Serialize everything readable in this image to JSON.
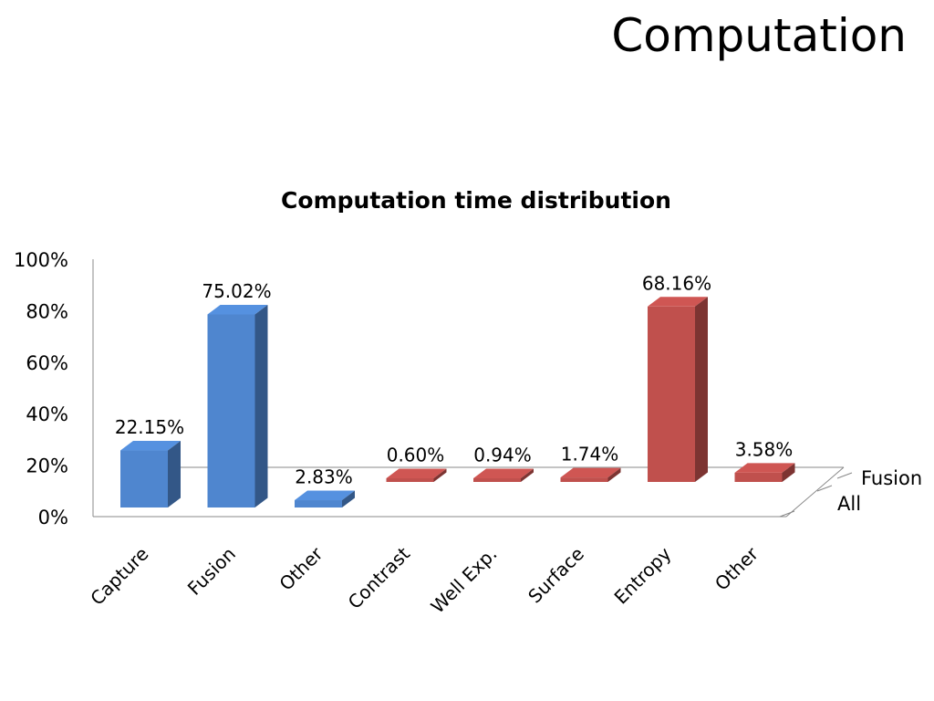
{
  "slide": {
    "title": "Computation"
  },
  "chart_data": {
    "type": "bar",
    "title": "Computation time distribution",
    "xlabel": "",
    "ylabel": "",
    "ylim": [
      0,
      100
    ],
    "yticks": [
      "0%",
      "20%",
      "40%",
      "60%",
      "80%",
      "100%"
    ],
    "categories": [
      "Capture",
      "Fusion",
      "Other",
      "Contrast",
      "Well Exp.",
      "Surface",
      "Entropy",
      "Other"
    ],
    "series": [
      {
        "name": "All",
        "color": "#4F86CF",
        "values": [
          22.15,
          75.02,
          2.83,
          null,
          null,
          null,
          null,
          null
        ],
        "labels": [
          "22.15%",
          "75.02%",
          "2.83%",
          "",
          "",
          "",
          "",
          ""
        ]
      },
      {
        "name": "Fusion",
        "color": "#C0504D",
        "values": [
          null,
          null,
          null,
          0.6,
          0.94,
          1.74,
          68.16,
          3.58
        ],
        "labels": [
          "",
          "",
          "",
          "0.60%",
          "0.94%",
          "1.74%",
          "68.16%",
          "3.58%"
        ]
      }
    ],
    "legend": "right (depth axis labels)",
    "grid": false,
    "style": "3d-column"
  }
}
